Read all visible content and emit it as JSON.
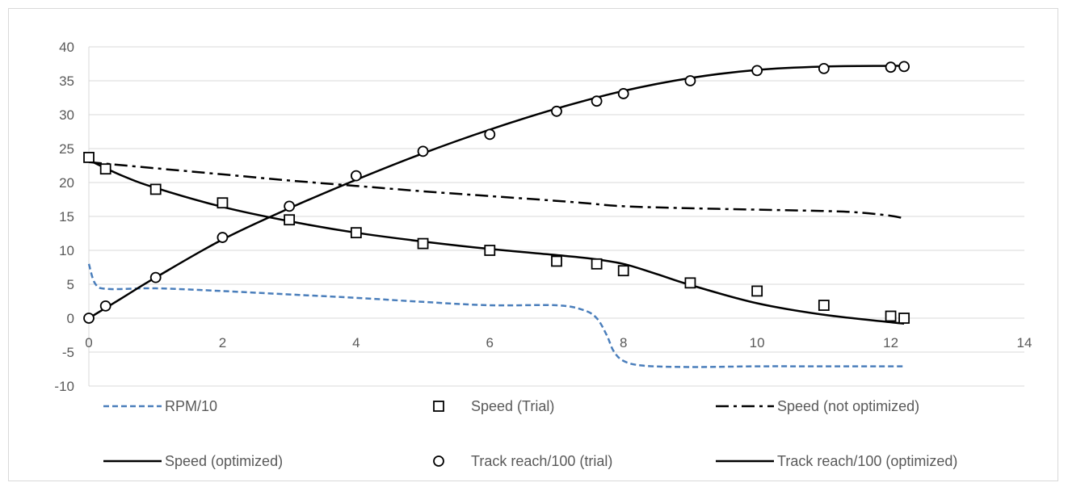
{
  "chart_data": {
    "type": "line",
    "title": "",
    "xlabel": "",
    "ylabel": "",
    "xlim": [
      0,
      14
    ],
    "ylim": [
      -10,
      40
    ],
    "x_ticks": [
      0,
      2,
      4,
      6,
      8,
      10,
      12,
      14
    ],
    "y_ticks": [
      -10,
      -5,
      0,
      5,
      10,
      15,
      20,
      25,
      30,
      35,
      40
    ],
    "x_tick_labels": [
      "0",
      "2",
      "4",
      "6",
      "8",
      "10",
      "12",
      "14"
    ],
    "y_tick_labels": [
      "-10",
      "-5",
      "0",
      "5",
      "10",
      "15",
      "20",
      "25",
      "30",
      "35",
      "40"
    ],
    "grid": "horizontal",
    "legend_position": "bottom",
    "series": [
      {
        "name": "RPM/10",
        "style": "dashed-line",
        "color": "#4a7ebb",
        "x": [
          0,
          0.1,
          0.3,
          1,
          2,
          3,
          4,
          5,
          6,
          7,
          7.4,
          7.6,
          7.75,
          7.85,
          8,
          8.3,
          9,
          10,
          11,
          12.2
        ],
        "y": [
          8,
          5,
          4.3,
          4.4,
          4,
          3.5,
          3,
          2.4,
          1.9,
          1.9,
          1.2,
          0,
          -2.5,
          -4.8,
          -6.3,
          -7,
          -7.2,
          -7.1,
          -7.1,
          -7.1
        ]
      },
      {
        "name": "Speed (Trial)",
        "style": "square-markers",
        "color": "#000000",
        "x": [
          0,
          0.25,
          1,
          2,
          3,
          4,
          5,
          6,
          7,
          7.6,
          8,
          9,
          10,
          11,
          12,
          12.2
        ],
        "y": [
          23.7,
          22,
          19,
          17,
          14.5,
          12.6,
          11,
          10,
          8.4,
          8,
          7,
          5.2,
          4,
          1.9,
          0.3,
          0
        ]
      },
      {
        "name": "Speed (not optimized)",
        "style": "dash-dot-line",
        "color": "#000000",
        "x": [
          0,
          1,
          2,
          3,
          4,
          5,
          6,
          7,
          7.5,
          8,
          9,
          10,
          11,
          11.5,
          12,
          12.2
        ],
        "y": [
          23,
          22.1,
          21.2,
          20.3,
          19.5,
          18.7,
          18,
          17.3,
          16.9,
          16.5,
          16.2,
          16,
          15.8,
          15.6,
          15.1,
          14.7
        ]
      },
      {
        "name": "Speed (optimized)",
        "style": "solid-line",
        "color": "#000000",
        "x": [
          0,
          0.5,
          1,
          2,
          3,
          4,
          5,
          6,
          7,
          7.5,
          8,
          8.5,
          9,
          10,
          11,
          12,
          12.2
        ],
        "y": [
          23.3,
          21,
          19.2,
          16.4,
          14.3,
          12.6,
          11.3,
          10.2,
          9.3,
          8.8,
          8,
          6.5,
          4.9,
          2.2,
          0.5,
          -0.6,
          -0.8
        ]
      },
      {
        "name": "Track reach/100 (trial)",
        "style": "circle-markers",
        "color": "#000000",
        "x": [
          0,
          0.25,
          1,
          2,
          3,
          4,
          5,
          6,
          7,
          7.6,
          8,
          9,
          10,
          11,
          12,
          12.2
        ],
        "y": [
          0,
          1.8,
          6,
          11.9,
          16.5,
          21,
          24.6,
          27.1,
          30.5,
          32,
          33.1,
          35,
          36.5,
          36.8,
          37,
          37.1
        ]
      },
      {
        "name": "Track reach/100 (optimized)",
        "style": "solid-line",
        "color": "#000000",
        "x": [
          0,
          0.5,
          1,
          2,
          3,
          4,
          5,
          6,
          7,
          8,
          9,
          10,
          11,
          12,
          12.2
        ],
        "y": [
          0,
          3,
          6,
          11.6,
          16.2,
          20.4,
          24.3,
          27.8,
          30.9,
          33.5,
          35.4,
          36.6,
          37.1,
          37.2,
          37.2
        ]
      }
    ]
  }
}
